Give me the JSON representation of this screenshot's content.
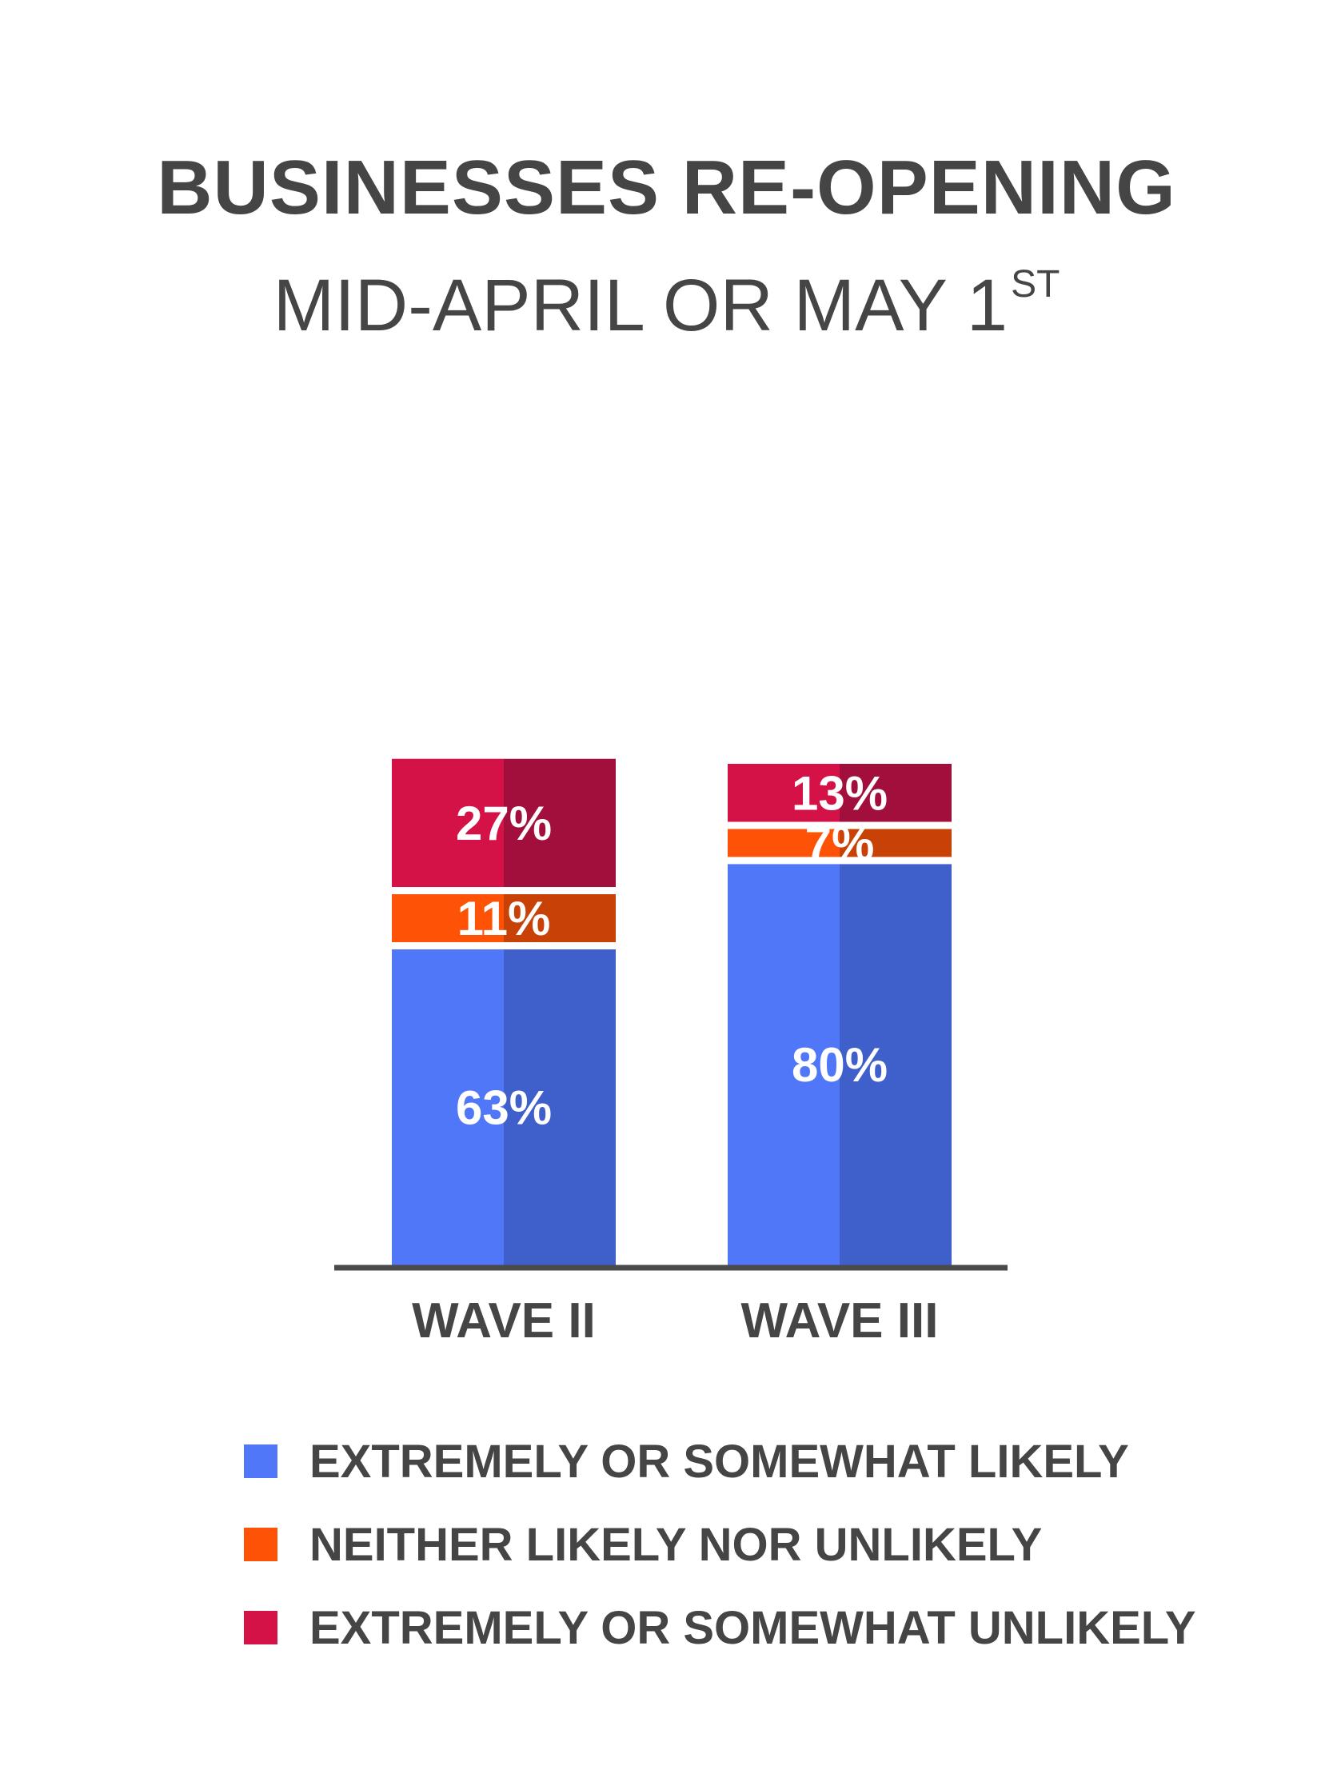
{
  "title": "BUSINESSES RE-OPENING",
  "subtitle": "MID-APRIL OR MAY 1",
  "subtitle_sup": "ST",
  "colors": {
    "likely": "#5177f9",
    "likely_shade": "#3f5fca",
    "neutral": "#fe5306",
    "neutral_shade": "#c84207",
    "unlikely": "#d41247",
    "unlikely_shade": "#a20f3c",
    "axis": "#4a4a4a"
  },
  "chart_data": {
    "type": "bar",
    "stacked": true,
    "categories": [
      "WAVE II",
      "WAVE III"
    ],
    "series": [
      {
        "name": "EXTREMELY OR SOMEWHAT LIKELY",
        "values": [
          63,
          80
        ],
        "labels": [
          "63%",
          "80%"
        ]
      },
      {
        "name": "NEITHER LIKELY NOR UNLIKELY",
        "values": [
          11,
          7
        ],
        "labels": [
          "11%",
          "7%"
        ]
      },
      {
        "name": "EXTREMELY OR SOMEWHAT UNLIKELY",
        "values": [
          27,
          13
        ],
        "labels": [
          "27%",
          "13%"
        ]
      }
    ],
    "ylim": [
      0,
      100
    ],
    "grid": false,
    "legend_position": "bottom"
  },
  "legend": [
    {
      "label": "EXTREMELY OR SOMEWHAT LIKELY",
      "color": "#5177f9"
    },
    {
      "label": "NEITHER LIKELY NOR UNLIKELY",
      "color": "#fe5306"
    },
    {
      "label": "EXTREMELY OR SOMEWHAT UNLIKELY",
      "color": "#d41247"
    }
  ]
}
